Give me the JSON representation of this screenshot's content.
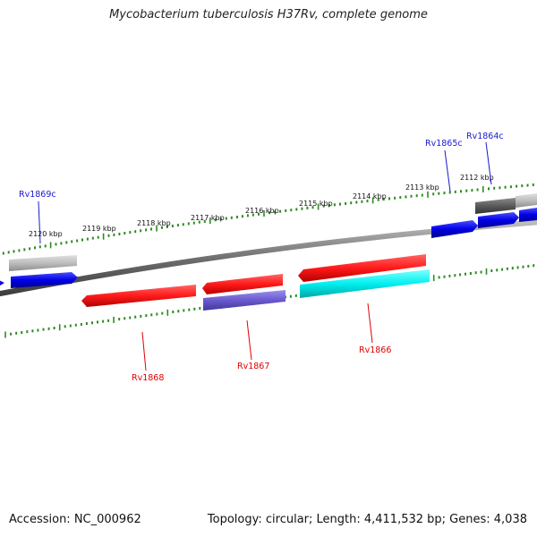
{
  "title": "Mycobacterium tuberculosis H37Rv, complete genome",
  "footer": {
    "accession": "Accession: NC_000962",
    "summary": "Topology: circular; Length: 4,411,532 bp; Genes: 4,038"
  },
  "colors": {
    "backbone": "#808080",
    "tick_ring": "#2e8b22",
    "forward_gene": "#0000e6",
    "reverse_gene": "#ff1a1a",
    "label_forward": "#1a1acc",
    "label_reverse": "#e00000"
  },
  "kbp_labels": [
    "2120 kbp",
    "2119 kbp",
    "2118 kbp",
    "2117 kbp",
    "2116 kbp",
    "2115 kbp",
    "2114 kbp",
    "2113 kbp",
    "2112 kbp"
  ],
  "genes": {
    "forward": [
      "Rv1869c",
      "Rv1865c",
      "Rv1864c"
    ],
    "reverse": [
      "Rv1868",
      "Rv1867",
      "Rv1866"
    ]
  }
}
